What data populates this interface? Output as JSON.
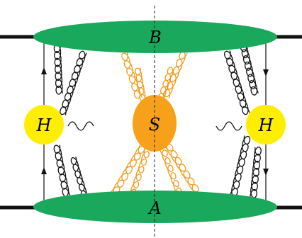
{
  "diagram": {
    "labels": {
      "top_blob": "B",
      "bottom_blob": "A",
      "soft_blob": "S",
      "left_higgs": "H",
      "right_higgs": "H"
    },
    "colors": {
      "blob_green": "#1aa85c",
      "higgs_yellow": "#ffee00",
      "soft_orange": "#f7a11a",
      "soft_gluon": "#f39a17",
      "line": "#000000"
    },
    "icons": {
      "photon": "wavy-line",
      "gluon": "coiled-line"
    }
  }
}
